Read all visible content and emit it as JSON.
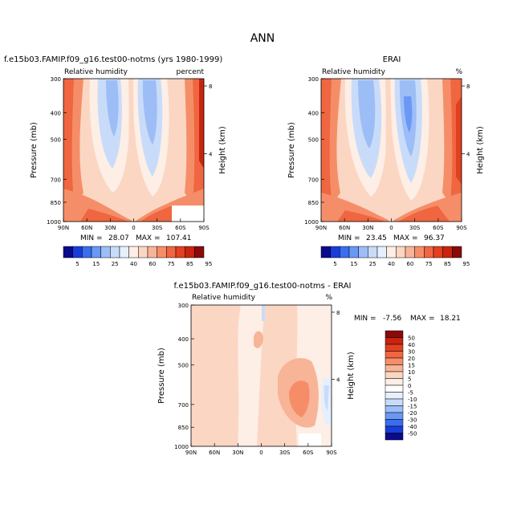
{
  "figure_title": "ANN",
  "chart_data": [
    {
      "type": "heatmap",
      "title": "f.e15b03.FAMIP.f09_g16.test00-notms (yrs 1980-1999)",
      "left_label": "Relative humidity",
      "right_label": "percent",
      "ylabel": "Pressure (mb)",
      "ylabel_right": "Height (km)",
      "x_ticks": [
        "90N",
        "60N",
        "30N",
        "0",
        "30S",
        "60S",
        "90S"
      ],
      "y_ticks": [
        "300",
        "400",
        "500",
        "700",
        "850",
        "1000"
      ],
      "y_right_ticks": [
        "8",
        "4"
      ],
      "min_label": "MIN =",
      "min_value": "28.07",
      "max_label": "MAX =",
      "max_value": "107.41",
      "colorbar_levels": [
        "5",
        "15",
        "25",
        "40",
        "60",
        "75",
        "85",
        "95"
      ],
      "colors": [
        "#0a0a8c",
        "#1a3cd8",
        "#3a6ef0",
        "#6a98f5",
        "#9dbdf7",
        "#c8dcfa",
        "#e6f0fd",
        "#fdeee6",
        "#fbd6c3",
        "#f8b497",
        "#f58e68",
        "#ef6640",
        "#e34020",
        "#c8240f",
        "#8a0a0a"
      ]
    },
    {
      "type": "heatmap",
      "title": "ERAI",
      "left_label": "Relative humidity",
      "right_label": "%",
      "ylabel": "Pressure (mb)",
      "ylabel_right": "Height (km)",
      "x_ticks": [
        "90N",
        "60N",
        "30N",
        "0",
        "30S",
        "60S",
        "90S"
      ],
      "y_ticks": [
        "300",
        "400",
        "500",
        "700",
        "850",
        "1000"
      ],
      "y_right_ticks": [
        "8",
        "4"
      ],
      "min_label": "MIN =",
      "min_value": "23.45",
      "max_label": "MAX =",
      "max_value": "96.37",
      "colorbar_levels": [
        "5",
        "15",
        "25",
        "40",
        "60",
        "75",
        "85",
        "95"
      ]
    },
    {
      "type": "heatmap",
      "title": "f.e15b03.FAMIP.f09_g16.test00-notms - ERAI",
      "left_label": "Relative humidity",
      "right_label": "%",
      "ylabel": "Pressure (mb)",
      "ylabel_right": "Height (km)",
      "x_ticks": [
        "90N",
        "60N",
        "30N",
        "0",
        "30S",
        "60S",
        "90S"
      ],
      "y_ticks": [
        "300",
        "400",
        "500",
        "700",
        "850",
        "1000"
      ],
      "y_right_ticks": [
        "8",
        "4"
      ],
      "min_label": "MIN =",
      "min_value": "-7.56",
      "max_label": "MAX =",
      "max_value": "18.21",
      "colorbar_levels": [
        "50",
        "40",
        "30",
        "20",
        "15",
        "10",
        "5",
        "0",
        "-5",
        "-10",
        "-15",
        "-20",
        "-30",
        "-40",
        "-50"
      ],
      "colors": [
        "#8a0a0a",
        "#c8240f",
        "#e34020",
        "#ef6640",
        "#f58e68",
        "#f8b497",
        "#fbd6c3",
        "#fdeee6",
        "#ffffff",
        "#e6f0fd",
        "#c8dcfa",
        "#9dbdf7",
        "#6a98f5",
        "#3a6ef0",
        "#1a3cd8",
        "#0a0a8c"
      ]
    }
  ]
}
